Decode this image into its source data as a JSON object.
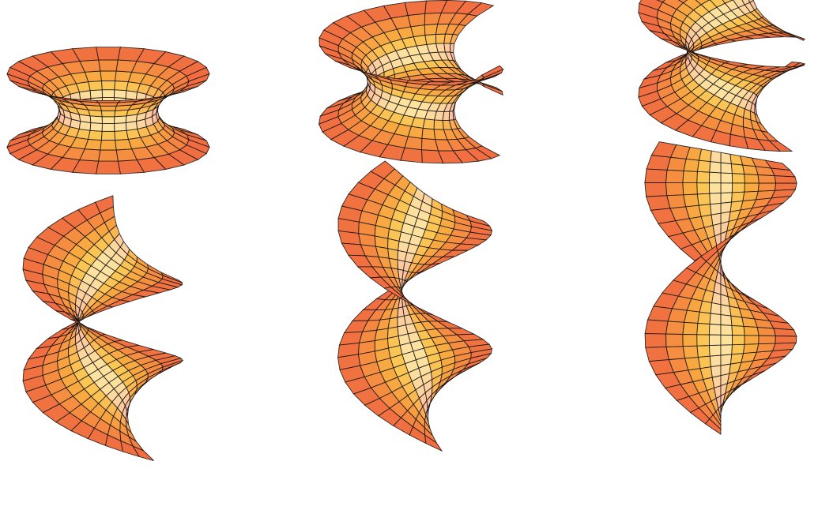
{
  "figure": {
    "description_free": true,
    "surfaces": [
      {
        "twist": 0.0
      },
      {
        "twist": 0.2
      },
      {
        "twist": 0.4
      },
      {
        "twist": 0.6
      },
      {
        "twist": 0.8
      },
      {
        "twist": 1.0
      }
    ],
    "colors": {
      "background": "#ffffff",
      "outer_rim": "#f06a45",
      "mid_tone": "#f5a35f",
      "highlight": "#fff3a0",
      "inner_glow": "#f3e2f6",
      "grid": "#111111"
    }
  }
}
